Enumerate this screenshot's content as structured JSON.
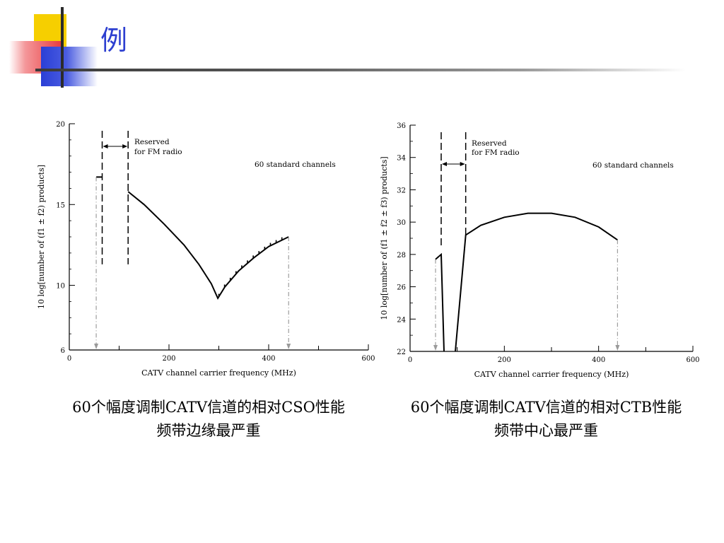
{
  "slide": {
    "title": "例",
    "captions": [
      {
        "line1": "60个幅度调制CATV信道的相对CSO性能",
        "line2": "频带边缘最严重"
      },
      {
        "line1": "60个幅度调制CATV信道的相对CTB性能",
        "line2": "频带中心最严重"
      }
    ]
  },
  "chart_data": [
    {
      "type": "line",
      "xlabel": "CATV channel carrier frequency (MHz)",
      "ylabel": "10 log[number of (f1 ± f2) products]",
      "xlim": [
        0,
        600
      ],
      "ylim": [
        6,
        20
      ],
      "x_ticks": [
        0,
        200,
        400,
        600
      ],
      "y_ticks": [
        6,
        10,
        15,
        20
      ],
      "annotations": [
        "Reserved",
        "for FM radio",
        "60 standard channels"
      ],
      "reserved_band_mhz": [
        66,
        118
      ],
      "series": [
        {
          "points": [
            [
              54,
              16.7
            ],
            [
              66,
              16.7
            ]
          ]
        },
        {
          "points": [
            [
              118,
              15.8
            ],
            [
              150,
              15.0
            ],
            [
              190,
              13.8
            ],
            [
              230,
              12.5
            ],
            [
              260,
              11.3
            ],
            [
              285,
              10.1
            ],
            [
              298,
              9.2
            ],
            [
              312,
              9.9
            ],
            [
              340,
              10.9
            ],
            [
              370,
              11.7
            ],
            [
              400,
              12.4
            ],
            [
              440,
              13.0
            ]
          ]
        }
      ],
      "markers_x": [
        54,
        440
      ]
    },
    {
      "type": "line",
      "xlabel": "CATV channel carrier frequency (MHz)",
      "ylabel": "10 log[number of (f1 ± f2 ± f3) products]",
      "xlim": [
        0,
        600
      ],
      "ylim": [
        22,
        36
      ],
      "x_ticks": [
        0,
        200,
        400,
        600
      ],
      "y_ticks": [
        22,
        24,
        26,
        28,
        30,
        32,
        34,
        36
      ],
      "annotations": [
        "Reserved",
        "for FM radio",
        "60 standard channels"
      ],
      "reserved_band_mhz": [
        66,
        118
      ],
      "series": [
        {
          "points": [
            [
              54,
              27.7
            ],
            [
              66,
              28.0
            ],
            [
              72,
              22
            ]
          ]
        },
        {
          "points": [
            [
              96,
              22
            ],
            [
              118,
              29.2
            ],
            [
              150,
              29.8
            ],
            [
              200,
              30.3
            ],
            [
              250,
              30.55
            ],
            [
              300,
              30.55
            ],
            [
              350,
              30.3
            ],
            [
              400,
              29.7
            ],
            [
              440,
              28.9
            ]
          ]
        }
      ],
      "markers_x": [
        54,
        440
      ]
    }
  ]
}
